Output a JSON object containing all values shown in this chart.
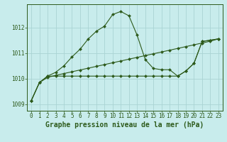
{
  "title": "Graphe pression niveau de la mer (hPa)",
  "background_color": "#c8ecec",
  "grid_color": "#aad4d4",
  "line_color": "#2d5a1b",
  "hours": [
    0,
    1,
    2,
    3,
    4,
    5,
    6,
    7,
    8,
    9,
    10,
    11,
    12,
    13,
    14,
    15,
    16,
    17,
    18,
    19,
    20,
    21,
    22,
    23
  ],
  "series_main": [
    1009.15,
    1009.85,
    1010.1,
    1010.25,
    1010.5,
    1010.85,
    1011.15,
    1011.55,
    1011.85,
    1012.05,
    1012.5,
    1012.62,
    1012.45,
    1011.7,
    1010.75,
    1010.4,
    1010.35,
    1010.35,
    1010.1,
    1010.3,
    1010.6,
    1011.45,
    1011.5,
    1011.55
  ],
  "series_flat": [
    1009.15,
    1009.85,
    1010.1,
    1010.1,
    1010.1,
    1010.1,
    1010.1,
    1010.1,
    1010.1,
    1010.1,
    1010.1,
    1010.1,
    1010.1,
    1010.1,
    1010.1,
    1010.1,
    1010.1,
    1010.1,
    1010.1,
    1010.3,
    1010.6,
    1011.45,
    1011.5,
    1011.55
  ],
  "series_trend": [
    1009.15,
    1009.85,
    1010.05,
    1010.13,
    1010.2,
    1010.27,
    1010.34,
    1010.41,
    1010.48,
    1010.55,
    1010.62,
    1010.69,
    1010.76,
    1010.83,
    1010.9,
    1010.97,
    1011.04,
    1011.11,
    1011.18,
    1011.25,
    1011.32,
    1011.39,
    1011.46,
    1011.55
  ],
  "ylim": [
    1008.75,
    1012.9
  ],
  "yticks": [
    1009,
    1010,
    1011,
    1012
  ],
  "xlim": [
    -0.5,
    23.5
  ],
  "title_fontsize": 7,
  "tick_fontsize": 5.5
}
